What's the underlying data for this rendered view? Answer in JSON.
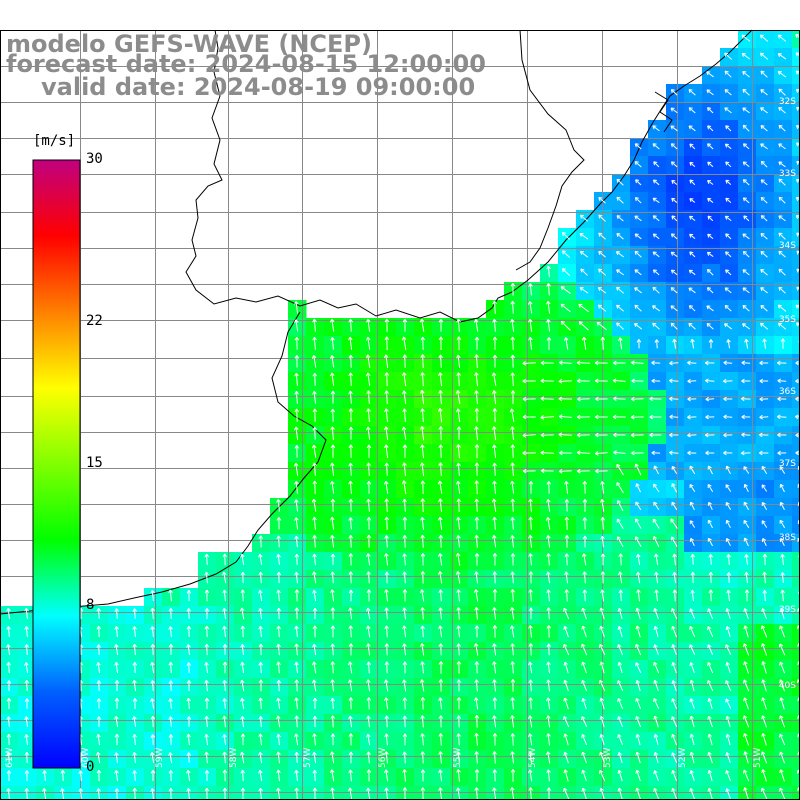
{
  "title": {
    "line1": "modelo GEFS-WAVE (NCEP)",
    "line2": "forecast date: 2024-08-15 12:00:00",
    "line3": "valid date: 2024-08-19 09:00:00"
  },
  "colorbar": {
    "unit": "[m/s]",
    "ticks": [
      {
        "label": "30",
        "value": 30
      },
      {
        "label": "22",
        "value": 22
      },
      {
        "label": "15",
        "value": 15
      },
      {
        "label": "8",
        "value": 8
      },
      {
        "label": "0",
        "value": 0
      }
    ],
    "min": 0,
    "max": 30,
    "stops": [
      "#0000ff",
      "#0060ff",
      "#00ffff",
      "#00ff00",
      "#80ff00",
      "#ffff00",
      "#ff8000",
      "#ff0000",
      "#c00080"
    ]
  },
  "map": {
    "lat_labels": [
      "32S",
      "33S",
      "34S",
      "35S",
      "36S",
      "37S",
      "38S",
      "39S",
      "40S"
    ],
    "lon_labels": [
      "61W",
      "60W",
      "59W",
      "58W",
      "57W",
      "56W",
      "55W",
      "54W",
      "53W",
      "52W",
      "51W"
    ],
    "field": "wind speed"
  }
}
